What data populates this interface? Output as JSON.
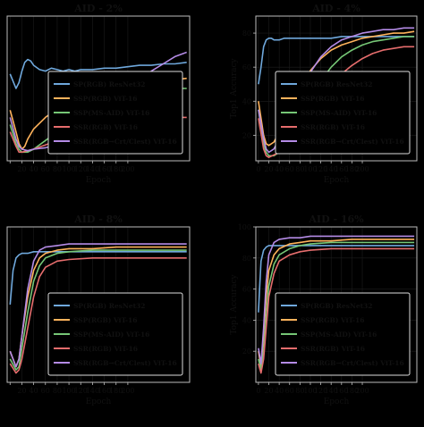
{
  "colors": {
    "background": "#000000",
    "axes_face": "#000000",
    "axes_edge": "#bbbbbb",
    "text": "#111111",
    "legend_bg": "#000000",
    "legend_edge": "#dddddd"
  },
  "chart_data": [
    {
      "type": "line",
      "title": "AID - 2%",
      "xlabel": "Epoch",
      "ylabel": "",
      "xlim": [
        -5,
        305
      ],
      "ylim": [
        0,
        100
      ],
      "xticks": [
        0,
        20,
        40,
        60,
        80,
        100,
        120,
        140,
        160,
        180,
        200
      ],
      "xticklabels": [
        "",
        "20",
        "40",
        "60",
        "80",
        "100",
        "120",
        "140",
        "160",
        "180",
        "200"
      ],
      "yticks": [],
      "grid": true,
      "legend_position": "lower-right",
      "series": [
        {
          "name": "SP(RGB) ResNet32",
          "color": "#6fa8dc",
          "x": [
            0,
            5,
            10,
            15,
            20,
            25,
            30,
            35,
            40,
            50,
            60,
            70,
            80,
            90,
            100,
            110,
            120,
            140,
            160,
            180,
            200,
            220,
            240,
            260,
            280,
            300
          ],
          "y": [
            60,
            55,
            50,
            54,
            62,
            68,
            70,
            69,
            66,
            63,
            62,
            64,
            63,
            62,
            63,
            62,
            63,
            63,
            64,
            64,
            65,
            66,
            66,
            67,
            67,
            68
          ]
        },
        {
          "name": "SSP(RGB) ViT-16",
          "color": "#ffb35c",
          "x": [
            0,
            10,
            15,
            20,
            25,
            30,
            40,
            60,
            80,
            100,
            120,
            140,
            160,
            180,
            200,
            220,
            240,
            260,
            280,
            300
          ],
          "y": [
            35,
            20,
            12,
            8,
            10,
            15,
            22,
            30,
            36,
            40,
            44,
            47,
            49,
            51,
            53,
            54,
            55,
            56,
            56,
            57
          ]
        },
        {
          "name": "SSP(MS-AID) ViT-16",
          "color": "#76c776",
          "x": [
            0,
            10,
            15,
            20,
            30,
            40,
            60,
            80,
            100,
            120,
            140,
            160,
            180,
            200,
            220,
            240,
            260,
            280,
            300
          ],
          "y": [
            25,
            12,
            8,
            6,
            6,
            8,
            14,
            20,
            26,
            31,
            36,
            40,
            43,
            46,
            47,
            48,
            49,
            50,
            50
          ]
        },
        {
          "name": "SSR(RGB) ViT-16",
          "color": "#e66d6d",
          "x": [
            0,
            10,
            15,
            20,
            40,
            60,
            80,
            100,
            120,
            140,
            160,
            180,
            200,
            220,
            240,
            260,
            280,
            300
          ],
          "y": [
            20,
            10,
            6,
            6,
            8,
            11,
            14,
            17,
            20,
            22,
            24,
            26,
            27,
            28,
            29,
            29,
            30,
            30
          ]
        },
        {
          "name": "SSR(RGB→Crt/Clest) ViT-16",
          "color": "#b48be6",
          "x": [
            0,
            10,
            15,
            20,
            30,
            40,
            60,
            80,
            100,
            120,
            140,
            160,
            180,
            200,
            220,
            240,
            260,
            280,
            300
          ],
          "y": [
            30,
            15,
            10,
            8,
            7,
            8,
            9,
            11,
            14,
            18,
            23,
            29,
            37,
            48,
            56,
            62,
            67,
            72,
            75
          ]
        }
      ]
    },
    {
      "type": "line",
      "title": "AID - 4%",
      "xlabel": "Epoch",
      "ylabel": "Top1 Accuracy",
      "xlim": [
        -5,
        305
      ],
      "ylim": [
        5,
        90
      ],
      "xticks": [
        0,
        20,
        40,
        60,
        80,
        100,
        120,
        140,
        160,
        180,
        200
      ],
      "xticklabels": [
        "0",
        "20",
        "40",
        "60",
        "80",
        "100",
        "120",
        "140",
        "160",
        "180",
        "200"
      ],
      "yticks": [
        20,
        40,
        60,
        80
      ],
      "grid": true,
      "legend_position": "lower-right",
      "series": [
        {
          "name": "SP(RGB) ResNet32",
          "color": "#6fa8dc",
          "x": [
            0,
            5,
            10,
            15,
            20,
            25,
            30,
            40,
            50,
            60,
            80,
            100,
            120,
            140,
            160,
            180,
            200,
            220,
            240,
            260,
            280,
            300
          ],
          "y": [
            50,
            60,
            72,
            76,
            77,
            77,
            76,
            76,
            77,
            77,
            77,
            77,
            77,
            77,
            78,
            78,
            78,
            78,
            78,
            78,
            78,
            78
          ]
        },
        {
          "name": "SSP(RGB) ViT-16",
          "color": "#ffb35c",
          "x": [
            0,
            10,
            15,
            20,
            30,
            40,
            60,
            80,
            100,
            120,
            140,
            160,
            180,
            200,
            220,
            240,
            260,
            280,
            300
          ],
          "y": [
            40,
            20,
            15,
            14,
            16,
            22,
            34,
            48,
            58,
            65,
            70,
            73,
            75,
            77,
            78,
            79,
            80,
            80,
            81
          ]
        },
        {
          "name": "SSP(MS-AID) ViT-16",
          "color": "#76c776",
          "x": [
            0,
            10,
            15,
            20,
            30,
            40,
            60,
            80,
            100,
            120,
            140,
            160,
            180,
            200,
            220,
            240,
            260,
            280,
            300
          ],
          "y": [
            35,
            15,
            10,
            8,
            8,
            10,
            18,
            30,
            42,
            52,
            60,
            66,
            70,
            73,
            75,
            76,
            77,
            78,
            78
          ]
        },
        {
          "name": "SSR(RGB) ViT-16",
          "color": "#e66d6d",
          "x": [
            0,
            10,
            15,
            20,
            40,
            60,
            80,
            100,
            120,
            140,
            160,
            180,
            200,
            220,
            240,
            260,
            280,
            300
          ],
          "y": [
            30,
            12,
            8,
            7,
            10,
            15,
            22,
            32,
            42,
            50,
            56,
            61,
            65,
            68,
            70,
            71,
            72,
            72
          ]
        },
        {
          "name": "SSR(RGB→Crt/Clest) ViT-16",
          "color": "#b48be6",
          "x": [
            0,
            10,
            15,
            20,
            30,
            40,
            60,
            80,
            100,
            120,
            140,
            160,
            180,
            200,
            220,
            240,
            260,
            280,
            300
          ],
          "y": [
            35,
            18,
            12,
            10,
            12,
            18,
            30,
            45,
            57,
            66,
            72,
            76,
            78,
            80,
            81,
            82,
            82,
            83,
            83
          ]
        }
      ]
    },
    {
      "type": "line",
      "title": "AID - 8%",
      "xlabel": "Epoch",
      "ylabel": "",
      "xlim": [
        -5,
        305
      ],
      "ylim": [
        0,
        100
      ],
      "xticks": [
        0,
        20,
        40,
        60,
        80,
        100,
        120,
        140,
        160,
        180,
        200
      ],
      "xticklabels": [
        "",
        "20",
        "40",
        "60",
        "80",
        "100",
        "120",
        "140",
        "160",
        "180",
        "200"
      ],
      "yticks": [],
      "grid": true,
      "legend_position": "lower-right",
      "series": [
        {
          "name": "SP(RGB) ResNet32",
          "color": "#6fa8dc",
          "x": [
            0,
            5,
            10,
            15,
            20,
            30,
            40,
            60,
            80,
            100,
            140,
            180,
            220,
            260,
            300
          ],
          "y": [
            50,
            72,
            80,
            82,
            83,
            83,
            84,
            84,
            84,
            84,
            84,
            84,
            84,
            84,
            84
          ]
        },
        {
          "name": "SSP(RGB) ViT-16",
          "color": "#ffb35c",
          "x": [
            0,
            10,
            15,
            20,
            30,
            40,
            50,
            60,
            80,
            100,
            140,
            180,
            220,
            260,
            300
          ],
          "y": [
            20,
            10,
            15,
            30,
            55,
            72,
            80,
            83,
            85,
            86,
            86,
            87,
            87,
            87,
            87
          ]
        },
        {
          "name": "SSP(MS-AID) ViT-16",
          "color": "#76c776",
          "x": [
            0,
            10,
            15,
            20,
            30,
            40,
            50,
            60,
            80,
            100,
            140,
            180,
            220,
            260,
            300
          ],
          "y": [
            15,
            8,
            10,
            22,
            45,
            65,
            75,
            80,
            83,
            84,
            85,
            85,
            85,
            85,
            85
          ]
        },
        {
          "name": "SSR(RGB) ViT-16",
          "color": "#e66d6d",
          "x": [
            0,
            10,
            15,
            20,
            30,
            40,
            50,
            60,
            80,
            100,
            140,
            180,
            220,
            260,
            300
          ],
          "y": [
            12,
            6,
            8,
            15,
            35,
            55,
            68,
            74,
            78,
            79,
            80,
            80,
            80,
            80,
            80
          ]
        },
        {
          "name": "SSR(RGB→Crt/Clest) ViT-16",
          "color": "#b48be6",
          "x": [
            0,
            10,
            15,
            20,
            30,
            40,
            50,
            60,
            80,
            100,
            140,
            180,
            220,
            260,
            300
          ],
          "y": [
            20,
            10,
            15,
            30,
            60,
            78,
            85,
            87,
            88,
            89,
            89,
            89,
            89,
            89,
            89
          ]
        }
      ]
    },
    {
      "type": "line",
      "title": "AID - 16%",
      "xlabel": "Epoch",
      "ylabel": "Top1 Accuracy",
      "xlim": [
        -5,
        305
      ],
      "ylim": [
        0,
        100
      ],
      "xticks": [
        0,
        20,
        40,
        60,
        80,
        100,
        120,
        140,
        160,
        180,
        200
      ],
      "xticklabels": [
        "0",
        "20",
        "40",
        "60",
        "80",
        "100",
        "120",
        "140",
        "160",
        "180",
        "200"
      ],
      "yticks": [
        20,
        40,
        60,
        80,
        100
      ],
      "grid": true,
      "legend_position": "lower-right",
      "series": [
        {
          "name": "SP(RGB) ResNet32",
          "color": "#6fa8dc",
          "x": [
            0,
            5,
            10,
            15,
            20,
            30,
            40,
            60,
            80,
            100,
            140,
            180,
            220,
            260,
            300
          ],
          "y": [
            45,
            78,
            85,
            87,
            88,
            88,
            88,
            88,
            88,
            88,
            88,
            88,
            88,
            88,
            88
          ]
        },
        {
          "name": "SSP(RGB) ViT-16",
          "color": "#ffb35c",
          "x": [
            0,
            5,
            10,
            15,
            20,
            30,
            40,
            60,
            80,
            100,
            140,
            180,
            220,
            260,
            300
          ],
          "y": [
            20,
            10,
            30,
            55,
            72,
            82,
            86,
            89,
            90,
            91,
            91,
            92,
            92,
            92,
            92
          ]
        },
        {
          "name": "SSP(MS-AID) ViT-16",
          "color": "#76c776",
          "x": [
            0,
            5,
            10,
            15,
            20,
            30,
            40,
            60,
            80,
            100,
            140,
            180,
            220,
            260,
            300
          ],
          "y": [
            15,
            8,
            20,
            42,
            62,
            76,
            82,
            86,
            88,
            89,
            90,
            90,
            90,
            90,
            90
          ]
        },
        {
          "name": "SSR(RGB) ViT-16",
          "color": "#e66d6d",
          "x": [
            0,
            5,
            10,
            15,
            20,
            30,
            40,
            60,
            80,
            100,
            140,
            180,
            220,
            260,
            300
          ],
          "y": [
            12,
            6,
            15,
            35,
            55,
            70,
            78,
            82,
            84,
            85,
            86,
            86,
            86,
            86,
            86
          ]
        },
        {
          "name": "SSR(RGB→Crt/Clest) ViT-16",
          "color": "#b48be6",
          "x": [
            0,
            5,
            10,
            15,
            20,
            30,
            40,
            60,
            80,
            100,
            140,
            180,
            220,
            260,
            300
          ],
          "y": [
            22,
            12,
            35,
            65,
            82,
            90,
            92,
            93,
            93,
            94,
            94,
            94,
            94,
            94,
            94
          ]
        }
      ]
    }
  ]
}
